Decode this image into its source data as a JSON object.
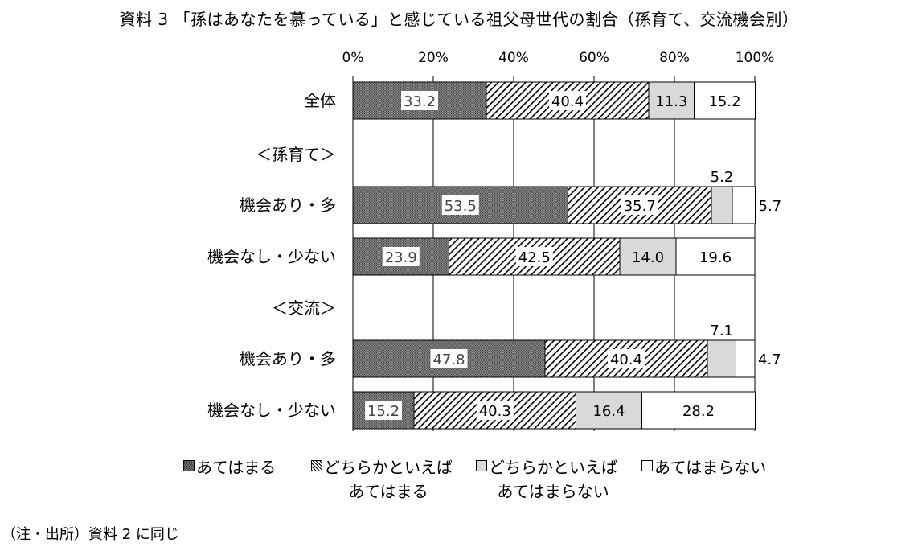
{
  "chart_data": {
    "type": "bar",
    "orientation": "horizontal",
    "stacked": true,
    "title": "資料 3 「孫はあなたを慕っている」と感じている祖父母世代の割合（孫育て、交流機会別）",
    "x_ticks": [
      "0%",
      "20%",
      "40%",
      "60%",
      "80%",
      "100%"
    ],
    "xlim": [
      0,
      100
    ],
    "grid": "vertical",
    "rows": [
      {
        "label": "全体",
        "is_group_header": false,
        "values": [
          33.2,
          40.4,
          11.3,
          15.2
        ]
      },
      {
        "label": "＜孫育て＞",
        "is_group_header": true,
        "values": []
      },
      {
        "label": "機会あり・多",
        "is_group_header": false,
        "values": [
          53.5,
          35.7,
          5.2,
          5.7
        ]
      },
      {
        "label": "機会なし・少ない",
        "is_group_header": false,
        "values": [
          23.9,
          42.5,
          14.0,
          19.6
        ]
      },
      {
        "label": "＜交流＞",
        "is_group_header": true,
        "values": []
      },
      {
        "label": "機会あり・多",
        "is_group_header": false,
        "values": [
          47.8,
          40.4,
          7.1,
          4.7
        ]
      },
      {
        "label": "機会なし・少ない",
        "is_group_header": false,
        "values": [
          15.2,
          40.3,
          16.4,
          28.2
        ]
      }
    ],
    "series": [
      {
        "name": "あてはまる",
        "fill": "dense-crosshatch"
      },
      {
        "name": "どちらかといえば\nあてはまる",
        "fill": "diagonal-hatch"
      },
      {
        "name": "どちらかといえば\nあてはまらない",
        "fill": "light-gray"
      },
      {
        "name": "あてはまらない",
        "fill": "white"
      }
    ],
    "legend_position": "bottom",
    "note": "（注・出所）資料 2 に同じ",
    "colors": {
      "gray": "#d9d9d9",
      "dark": "#6f6f6f",
      "outline": "#000000"
    }
  }
}
